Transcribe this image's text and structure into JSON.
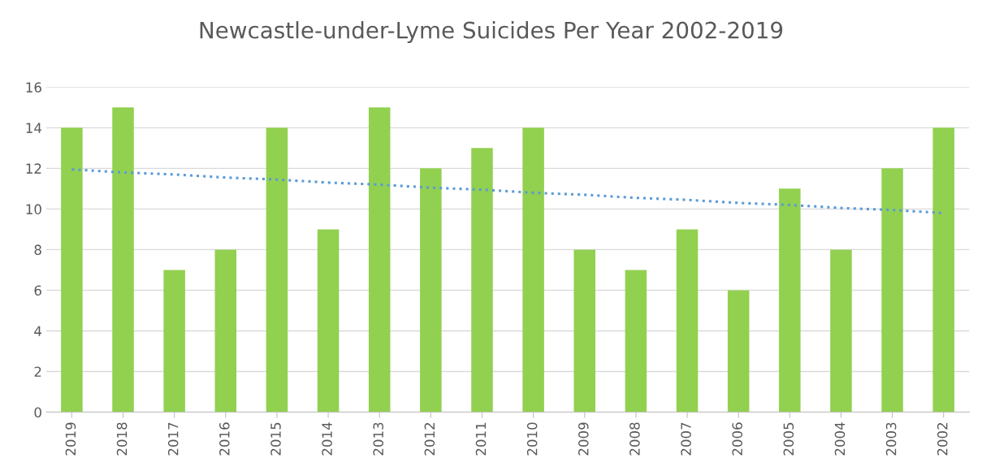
{
  "chart_data": {
    "type": "bar",
    "title": "Newcastle-under-Lyme Suicides Per Year 2002-2019",
    "categories": [
      "2019",
      "2018",
      "2017",
      "2016",
      "2015",
      "2014",
      "2013",
      "2012",
      "2011",
      "2010",
      "2009",
      "2008",
      "2007",
      "2006",
      "2005",
      "2004",
      "2003",
      "2002"
    ],
    "series": [
      {
        "color": "#92d050",
        "values": [
          14,
          15,
          7,
          8,
          14,
          9,
          15,
          12,
          13,
          14,
          8,
          7,
          9,
          6,
          11,
          8,
          12,
          14
        ]
      },
      {
        "type": "line",
        "color": "#5b9bd5",
        "line_style": "dotted",
        "values": [
          11.95,
          11.8,
          11.7,
          11.55,
          11.45,
          11.3,
          11.2,
          11.05,
          10.95,
          10.8,
          10.7,
          10.55,
          10.45,
          10.3,
          10.2,
          10.05,
          9.95,
          9.8
        ]
      }
    ],
    "ylim": [
      0,
      16
    ],
    "yticks": [
      0,
      2,
      4,
      6,
      8,
      10,
      12,
      14,
      16
    ],
    "grid": "y",
    "legend": false
  }
}
